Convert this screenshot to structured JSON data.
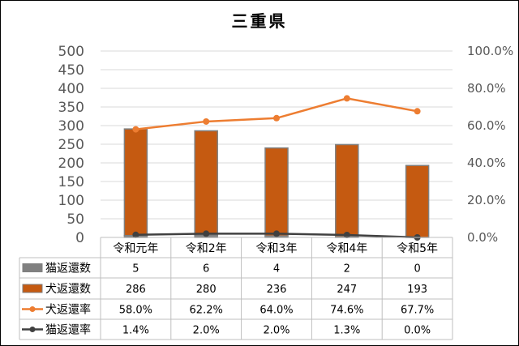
{
  "chart_data": {
    "type": "bar",
    "title": "三重県",
    "categories": [
      "令和元年",
      "令和2年",
      "令和3年",
      "令和4年",
      "令和5年"
    ],
    "y_left": {
      "min": 0,
      "max": 500,
      "step": 50,
      "ticks": [
        "0",
        "50",
        "100",
        "150",
        "200",
        "250",
        "300",
        "350",
        "400",
        "450",
        "500"
      ]
    },
    "y_right": {
      "min": 0,
      "max": 100,
      "step": 20,
      "ticks": [
        "0.0%",
        "20.0%",
        "40.0%",
        "60.0%",
        "80.0%",
        "100.0%"
      ]
    },
    "grid": true,
    "legend_position": "table-left",
    "series": [
      {
        "name": "猫返還数",
        "type": "bar",
        "axis": "left",
        "color": "#808080",
        "values": [
          5,
          6,
          4,
          2,
          0
        ],
        "labels": [
          "5",
          "6",
          "4",
          "2",
          "0"
        ]
      },
      {
        "name": "犬返還数",
        "type": "bar",
        "axis": "left",
        "color": "#c55a11",
        "values": [
          286,
          280,
          236,
          247,
          193
        ],
        "labels": [
          "286",
          "280",
          "236",
          "247",
          "193"
        ]
      },
      {
        "name": "犬返還率",
        "type": "line",
        "axis": "right",
        "color": "#ed7d31",
        "values": [
          58.0,
          62.2,
          64.0,
          74.6,
          67.7
        ],
        "labels": [
          "58.0%",
          "62.2%",
          "64.0%",
          "74.6%",
          "67.7%"
        ]
      },
      {
        "name": "猫返還率",
        "type": "line",
        "axis": "right",
        "color": "#404040",
        "values": [
          1.4,
          2.0,
          2.0,
          1.3,
          0.0
        ],
        "labels": [
          "1.4%",
          "2.0%",
          "2.0%",
          "1.3%",
          "0.0%"
        ]
      }
    ]
  }
}
